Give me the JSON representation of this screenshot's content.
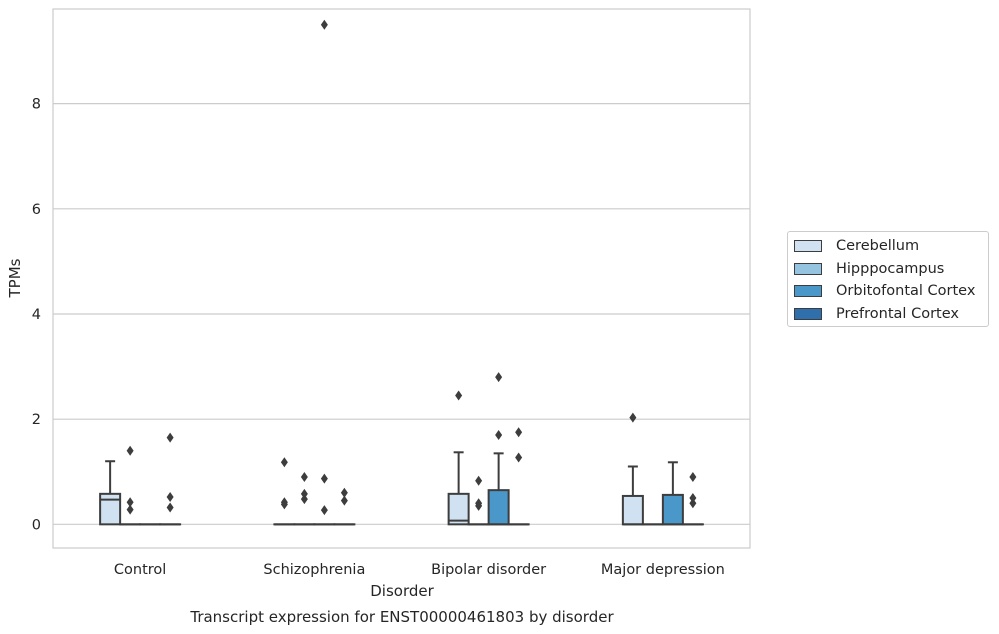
{
  "chart_data": {
    "type": "box",
    "title": "Transcript expression for ENST00000461803 by disorder",
    "xlabel": "Disorder",
    "ylabel": "TPMs",
    "ylim": [
      -0.45,
      9.8
    ],
    "yticks": [
      0,
      2,
      4,
      6,
      8
    ],
    "grid": "horizontal",
    "legend_position": "right",
    "categories": [
      "Control",
      "Schizophrenia",
      "Bipolar disorder",
      "Major depression"
    ],
    "series": [
      {
        "name": "Cerebellum",
        "color": "#d0e1f2",
        "boxes": [
          {
            "q1": 0,
            "median": 0.47,
            "q3": 0.58,
            "whislo": 0,
            "whishi": 1.2,
            "fliers": []
          },
          {
            "q1": 0,
            "median": 0,
            "q3": 0,
            "whislo": 0,
            "whishi": 0,
            "fliers": [
              0.38,
              0.42,
              1.18
            ]
          },
          {
            "q1": 0,
            "median": 0.07,
            "q3": 0.58,
            "whislo": 0,
            "whishi": 1.37,
            "fliers": [
              2.45
            ]
          },
          {
            "q1": 0,
            "median": 0,
            "q3": 0.54,
            "whislo": 0,
            "whishi": 1.1,
            "fliers": [
              2.03
            ]
          }
        ]
      },
      {
        "name": "Hipppocampus",
        "color": "#94c4df",
        "boxes": [
          {
            "q1": 0,
            "median": 0,
            "q3": 0,
            "whislo": 0,
            "whishi": 0,
            "fliers": [
              0.28,
              0.42,
              1.4
            ]
          },
          {
            "q1": 0,
            "median": 0,
            "q3": 0,
            "whislo": 0,
            "whishi": 0,
            "fliers": [
              0.48,
              0.58,
              0.9
            ]
          },
          {
            "q1": 0,
            "median": 0,
            "q3": 0,
            "whislo": 0,
            "whishi": 0,
            "fliers": [
              0.35,
              0.4,
              0.83
            ]
          },
          {
            "q1": 0,
            "median": 0,
            "q3": 0,
            "whislo": 0,
            "whishi": 0,
            "fliers": []
          }
        ]
      },
      {
        "name": "Orbitofontal Cortex",
        "color": "#4a98c9",
        "boxes": [
          {
            "q1": 0,
            "median": 0,
            "q3": 0,
            "whislo": 0,
            "whishi": 0,
            "fliers": []
          },
          {
            "q1": 0,
            "median": 0,
            "q3": 0,
            "whislo": 0,
            "whishi": 0,
            "fliers": [
              0.27,
              0.87,
              9.5
            ]
          },
          {
            "q1": 0,
            "median": 0,
            "q3": 0.65,
            "whislo": 0,
            "whishi": 1.35,
            "fliers": [
              1.7,
              2.8
            ]
          },
          {
            "q1": 0,
            "median": 0,
            "q3": 0.56,
            "whislo": 0,
            "whishi": 1.18,
            "fliers": []
          }
        ]
      },
      {
        "name": "Prefrontal Cortex",
        "color": "#2e6fac",
        "boxes": [
          {
            "q1": 0,
            "median": 0,
            "q3": 0,
            "whislo": 0,
            "whishi": 0,
            "fliers": [
              0.32,
              0.52,
              1.65
            ]
          },
          {
            "q1": 0,
            "median": 0,
            "q3": 0,
            "whislo": 0,
            "whishi": 0,
            "fliers": [
              0.45,
              0.6
            ]
          },
          {
            "q1": 0,
            "median": 0,
            "q3": 0,
            "whislo": 0,
            "whishi": 0,
            "fliers": [
              1.27,
              1.75
            ]
          },
          {
            "q1": 0,
            "median": 0,
            "q3": 0,
            "whislo": 0,
            "whishi": 0,
            "fliers": [
              0.4,
              0.5,
              0.9
            ]
          }
        ]
      }
    ]
  }
}
